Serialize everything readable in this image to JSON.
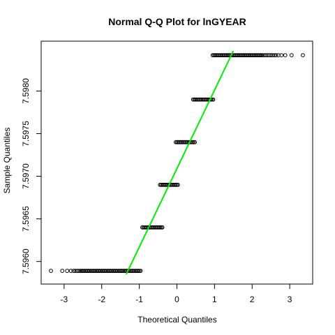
{
  "chart_data": {
    "type": "scatter",
    "title": "Normal Q-Q Plot for lnGYEAR",
    "xlabel": "Theoretical Quantiles",
    "ylabel": "Sample Quantiles",
    "xlim": [
      -3.35,
      3.35
    ],
    "ylim": [
      7.59585,
      7.59847
    ],
    "x_ticks": [
      -3,
      -2,
      -1,
      0,
      1,
      2,
      3
    ],
    "x_tick_labels": [
      "-3",
      "-2",
      "-1",
      "0",
      "1",
      "2",
      "3"
    ],
    "y_ticks": [
      7.596,
      7.5965,
      7.597,
      7.5975,
      7.598
    ],
    "y_tick_labels": [
      "7.5960",
      "7.5965",
      "7.5970",
      "7.5975",
      "7.5980"
    ],
    "grid": false,
    "point_marker": "open-circle",
    "point_color": "#000000",
    "line_color": "#00ee00",
    "reference_line": {
      "intercept": 7.59709,
      "slope": 0.00092
    },
    "series": [
      {
        "dense_segments": [
          {
            "y": 7.59589,
            "x_from": -2.45,
            "x_to": -0.95
          },
          {
            "y": 7.5964,
            "x_from": -0.92,
            "x_to": -0.38
          },
          {
            "y": 7.5969,
            "x_from": -0.45,
            "x_to": 0.03
          },
          {
            "y": 7.5974,
            "x_from": -0.03,
            "x_to": 0.48
          },
          {
            "y": 7.5979,
            "x_from": 0.43,
            "x_to": 0.98
          },
          {
            "y": 7.59842,
            "x_from": 0.95,
            "x_to": 2.3
          }
        ],
        "tail_points": [
          {
            "x": -3.35,
            "y": 7.59589
          },
          {
            "x": -3.05,
            "y": 7.59589
          },
          {
            "x": -2.92,
            "y": 7.59589
          },
          {
            "x": -2.82,
            "y": 7.59589
          },
          {
            "x": -2.75,
            "y": 7.59589
          },
          {
            "x": -2.7,
            "y": 7.59589
          },
          {
            "x": -2.65,
            "y": 7.59589
          },
          {
            "x": -2.61,
            "y": 7.59589
          },
          {
            "x": -2.57,
            "y": 7.59589
          },
          {
            "x": -2.54,
            "y": 7.59589
          },
          {
            "x": -2.51,
            "y": 7.59589
          },
          {
            "x": -2.48,
            "y": 7.59589
          },
          {
            "x": 2.33,
            "y": 7.59842
          },
          {
            "x": 2.37,
            "y": 7.59842
          },
          {
            "x": 2.41,
            "y": 7.59842
          },
          {
            "x": 2.45,
            "y": 7.59842
          },
          {
            "x": 2.49,
            "y": 7.59842
          },
          {
            "x": 2.54,
            "y": 7.59842
          },
          {
            "x": 2.59,
            "y": 7.59842
          },
          {
            "x": 2.64,
            "y": 7.59842
          },
          {
            "x": 2.7,
            "y": 7.59842
          },
          {
            "x": 2.78,
            "y": 7.59842
          },
          {
            "x": 2.88,
            "y": 7.59842
          },
          {
            "x": 3.05,
            "y": 7.59842
          },
          {
            "x": 3.35,
            "y": 7.59842
          }
        ]
      }
    ]
  }
}
